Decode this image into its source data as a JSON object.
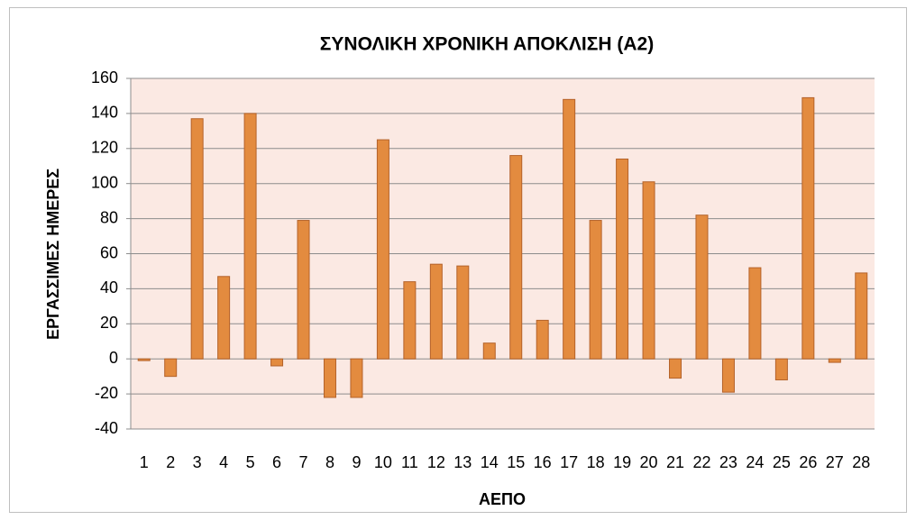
{
  "chart_data": {
    "type": "bar",
    "title": "ΣΥΝΟΛΙΚΗ ΧΡΟΝΙΚΗ ΑΠΟΚΛΙΣΗ (Α2)",
    "x_label": "ΑΕΠΟ",
    "y_label": "ΕΡΓΑΣΣΙΜΕΣ ΗΜΕΡΕΣ",
    "categories": [
      "1",
      "2",
      "3",
      "4",
      "5",
      "6",
      "7",
      "8",
      "9",
      "10",
      "11",
      "12",
      "13",
      "14",
      "15",
      "16",
      "17",
      "18",
      "19",
      "20",
      "21",
      "22",
      "23",
      "24",
      "25",
      "26",
      "27",
      "28"
    ],
    "values": [
      -1,
      -10,
      137,
      47,
      140,
      -4,
      79,
      -22,
      -22,
      125,
      44,
      54,
      53,
      9,
      116,
      22,
      148,
      79,
      114,
      101,
      -11,
      82,
      -19,
      52,
      -12,
      149,
      -2,
      49
    ],
    "color": "#e38b3f",
    "edge_color": "#b4622a",
    "plot_background": "#fbe9e3",
    "ylim": [
      -40,
      160
    ],
    "yticks": [
      -40,
      -20,
      0,
      20,
      40,
      60,
      80,
      100,
      120,
      140,
      160
    ],
    "grid": true
  }
}
